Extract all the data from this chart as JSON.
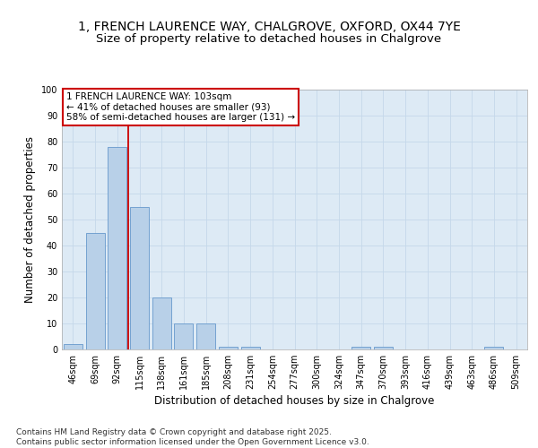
{
  "title_line1": "1, FRENCH LAURENCE WAY, CHALGROVE, OXFORD, OX44 7YE",
  "title_line2": "Size of property relative to detached houses in Chalgrove",
  "xlabel": "Distribution of detached houses by size in Chalgrove",
  "ylabel": "Number of detached properties",
  "categories": [
    "46sqm",
    "69sqm",
    "92sqm",
    "115sqm",
    "138sqm",
    "161sqm",
    "185sqm",
    "208sqm",
    "231sqm",
    "254sqm",
    "277sqm",
    "300sqm",
    "324sqm",
    "347sqm",
    "370sqm",
    "393sqm",
    "416sqm",
    "439sqm",
    "463sqm",
    "486sqm",
    "509sqm"
  ],
  "values": [
    2,
    45,
    78,
    55,
    20,
    10,
    10,
    1,
    1,
    0,
    0,
    0,
    0,
    1,
    1,
    0,
    0,
    0,
    0,
    1,
    0
  ],
  "bar_color": "#b8d0e8",
  "bar_edge_color": "#6699cc",
  "vline_color": "#cc0000",
  "annotation_text": "1 FRENCH LAURENCE WAY: 103sqm\n← 41% of detached houses are smaller (93)\n58% of semi-detached houses are larger (131) →",
  "annotation_box_color": "#ffffff",
  "annotation_box_edge": "#cc0000",
  "ylim": [
    0,
    100
  ],
  "yticks": [
    0,
    10,
    20,
    30,
    40,
    50,
    60,
    70,
    80,
    90,
    100
  ],
  "grid_color": "#c5d8ea",
  "bg_color": "#ddeaf5",
  "footer_line1": "Contains HM Land Registry data © Crown copyright and database right 2025.",
  "footer_line2": "Contains public sector information licensed under the Open Government Licence v3.0.",
  "title_fontsize": 10,
  "subtitle_fontsize": 9.5,
  "tick_fontsize": 7,
  "label_fontsize": 8.5,
  "annotation_fontsize": 7.5,
  "footer_fontsize": 6.5
}
